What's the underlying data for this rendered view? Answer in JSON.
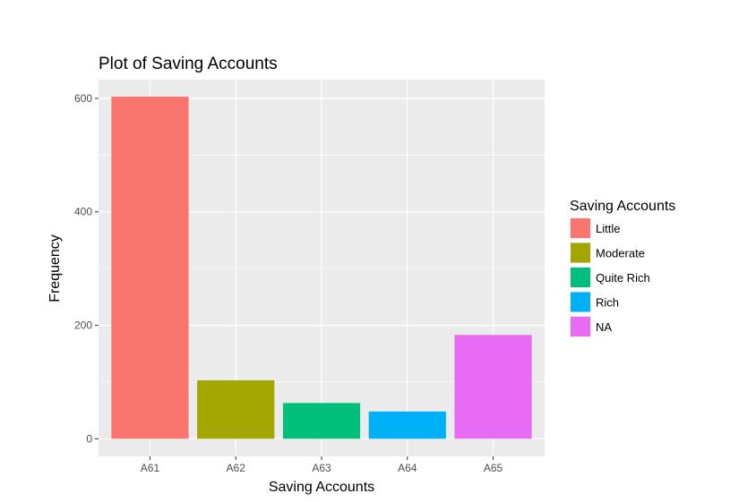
{
  "chart_data": {
    "type": "bar",
    "title": "Plot of Saving Accounts",
    "xlabel": "Saving Accounts",
    "ylabel": "Frequency",
    "categories": [
      "A61",
      "A62",
      "A63",
      "A64",
      "A65"
    ],
    "values": [
      603,
      103,
      63,
      48,
      183
    ],
    "ylim": [
      -31,
      633
    ],
    "yticks": [
      0,
      200,
      400,
      600
    ],
    "grid": true,
    "legend": {
      "title": "Saving Accounts",
      "position": "right",
      "items": [
        {
          "label": "Little",
          "color": "#F8766D"
        },
        {
          "label": "Moderate",
          "color": "#A3A500"
        },
        {
          "label": "Quite Rich",
          "color": "#00BF7D"
        },
        {
          "label": "Rich",
          "color": "#00B0F6"
        },
        {
          "label": "NA",
          "color": "#E76BF3"
        }
      ]
    },
    "colors": [
      "#F8766D",
      "#A3A500",
      "#00BF7D",
      "#00B0F6",
      "#E76BF3"
    ],
    "panel_background": "#EBEBEB",
    "grid_color": "#FFFFFF"
  }
}
